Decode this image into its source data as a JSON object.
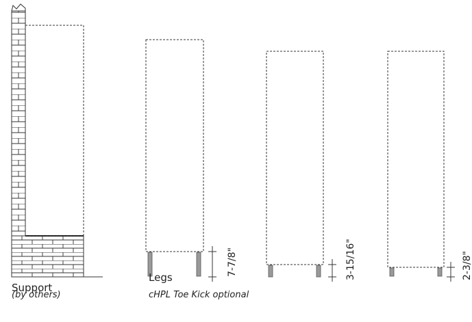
{
  "labels": {
    "support": "Support",
    "support_note": "(by others)",
    "legs": "Legs",
    "legs_note": "cHPL Toe Kick optional"
  },
  "dimensions": [
    "7-7/8\"",
    "3-15/16\"",
    "2-3/8\""
  ]
}
